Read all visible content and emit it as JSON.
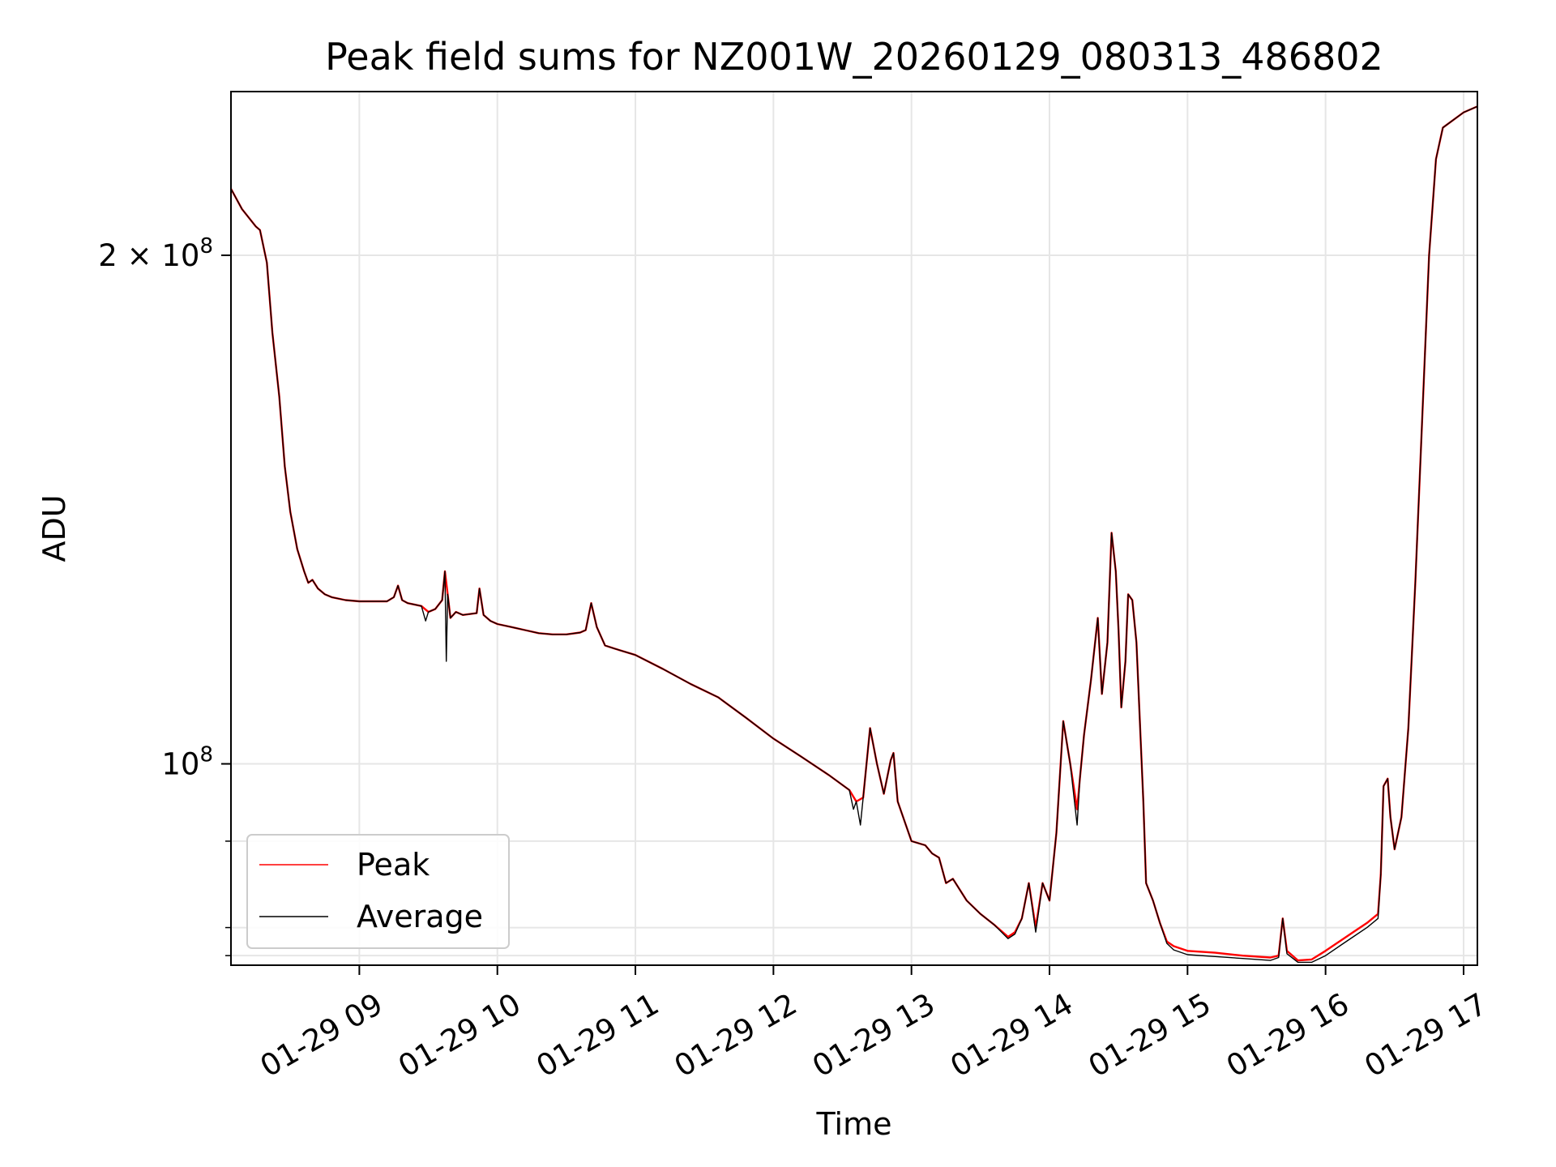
{
  "chart_data": {
    "type": "line",
    "title": "Peak field sums for NZ001W_20260129_080313_486802",
    "xlabel": "Time",
    "ylabel": "ADU",
    "yscale": "log",
    "ylim": [
      76000000,
      250000000
    ],
    "xlim_hours": [
      8.07,
      17.1
    ],
    "grid": true,
    "legend_position": "lower-left",
    "x_ticks": [
      {
        "hour": 9,
        "label": "01-29 09"
      },
      {
        "hour": 10,
        "label": "01-29 10"
      },
      {
        "hour": 11,
        "label": "01-29 11"
      },
      {
        "hour": 12,
        "label": "01-29 12"
      },
      {
        "hour": 13,
        "label": "01-29 13"
      },
      {
        "hour": 14,
        "label": "01-29 14"
      },
      {
        "hour": 15,
        "label": "01-29 15"
      },
      {
        "hour": 16,
        "label": "01-29 16"
      },
      {
        "hour": 17,
        "label": "01-29 17"
      }
    ],
    "y_ticks_major": [
      {
        "value": 100000000,
        "base": "10",
        "exp": "8"
      },
      {
        "value": 200000000,
        "base": "2 × 10",
        "exp": "8"
      }
    ],
    "y_ticks_minor": [
      77000000,
      80000000,
      90000000,
      300000000
    ],
    "series": [
      {
        "name": "Peak",
        "color": "#ff0000",
        "points": [
          [
            8.07,
            219
          ],
          [
            8.15,
            213
          ],
          [
            8.25,
            208
          ],
          [
            8.28,
            207
          ],
          [
            8.33,
            198
          ],
          [
            8.37,
            180
          ],
          [
            8.42,
            165
          ],
          [
            8.46,
            150
          ],
          [
            8.5,
            141
          ],
          [
            8.55,
            134
          ],
          [
            8.6,
            130
          ],
          [
            8.63,
            128
          ],
          [
            8.66,
            128.5
          ],
          [
            8.7,
            127
          ],
          [
            8.75,
            126
          ],
          [
            8.8,
            125.5
          ],
          [
            8.9,
            125
          ],
          [
            9,
            124.8
          ],
          [
            9.1,
            124.8
          ],
          [
            9.2,
            124.8
          ],
          [
            9.25,
            125.5
          ],
          [
            9.28,
            127.5
          ],
          [
            9.31,
            125
          ],
          [
            9.35,
            124.5
          ],
          [
            9.45,
            124
          ],
          [
            9.5,
            123
          ],
          [
            9.55,
            123.5
          ],
          [
            9.6,
            125
          ],
          [
            9.62,
            130
          ],
          [
            9.64,
            126
          ],
          [
            9.66,
            122
          ],
          [
            9.7,
            123
          ],
          [
            9.75,
            122.5
          ],
          [
            9.85,
            122.8
          ],
          [
            9.87,
            127
          ],
          [
            9.9,
            122.5
          ],
          [
            9.95,
            121.5
          ],
          [
            10,
            121
          ],
          [
            10.1,
            120.5
          ],
          [
            10.2,
            120
          ],
          [
            10.3,
            119.5
          ],
          [
            10.4,
            119.3
          ],
          [
            10.5,
            119.3
          ],
          [
            10.6,
            119.6
          ],
          [
            10.64,
            120
          ],
          [
            10.68,
            124.5
          ],
          [
            10.72,
            120.5
          ],
          [
            10.78,
            117.5
          ],
          [
            10.85,
            117
          ],
          [
            11,
            116
          ],
          [
            11.2,
            113.8
          ],
          [
            11.4,
            111.5
          ],
          [
            11.6,
            109.5
          ],
          [
            11.8,
            106.5
          ],
          [
            12,
            103.5
          ],
          [
            12.2,
            101
          ],
          [
            12.4,
            98.5
          ],
          [
            12.55,
            96.5
          ],
          [
            12.6,
            95
          ],
          [
            12.65,
            95.5
          ],
          [
            12.7,
            105
          ],
          [
            12.75,
            100
          ],
          [
            12.8,
            96
          ],
          [
            12.85,
            100.5
          ],
          [
            12.87,
            101.5
          ],
          [
            12.9,
            95
          ],
          [
            13,
            90
          ],
          [
            13.1,
            89.5
          ],
          [
            13.15,
            88.5
          ],
          [
            13.2,
            88
          ],
          [
            13.25,
            85
          ],
          [
            13.3,
            85.5
          ],
          [
            13.4,
            83
          ],
          [
            13.5,
            81.5
          ],
          [
            13.6,
            80.3
          ],
          [
            13.7,
            79
          ],
          [
            13.75,
            79.5
          ],
          [
            13.8,
            81
          ],
          [
            13.85,
            85
          ],
          [
            13.9,
            80
          ],
          [
            13.95,
            85
          ],
          [
            14,
            83
          ],
          [
            14.05,
            91
          ],
          [
            14.1,
            106
          ],
          [
            14.15,
            100
          ],
          [
            14.2,
            94
          ],
          [
            14.22,
            98
          ],
          [
            14.25,
            104
          ],
          [
            14.3,
            112
          ],
          [
            14.35,
            122
          ],
          [
            14.38,
            110
          ],
          [
            14.42,
            118
          ],
          [
            14.45,
            137
          ],
          [
            14.48,
            130
          ],
          [
            14.5,
            120
          ],
          [
            14.52,
            108
          ],
          [
            14.55,
            115
          ],
          [
            14.57,
            126
          ],
          [
            14.6,
            125
          ],
          [
            14.63,
            118
          ],
          [
            14.68,
            95
          ],
          [
            14.7,
            85
          ],
          [
            14.75,
            83
          ],
          [
            14.8,
            80.5
          ],
          [
            14.85,
            78.5
          ],
          [
            14.9,
            78
          ],
          [
            15,
            77.5
          ],
          [
            15.2,
            77.3
          ],
          [
            15.4,
            77
          ],
          [
            15.6,
            76.8
          ],
          [
            15.66,
            77
          ],
          [
            15.69,
            81
          ],
          [
            15.72,
            77.5
          ],
          [
            15.8,
            76.5
          ],
          [
            15.9,
            76.6
          ],
          [
            16,
            77.5
          ],
          [
            16.1,
            78.5
          ],
          [
            16.2,
            79.5
          ],
          [
            16.3,
            80.5
          ],
          [
            16.38,
            81.5
          ],
          [
            16.4,
            86
          ],
          [
            16.42,
            97
          ],
          [
            16.45,
            98
          ],
          [
            16.47,
            93
          ],
          [
            16.5,
            89
          ],
          [
            16.55,
            93
          ],
          [
            16.6,
            105
          ],
          [
            16.65,
            128
          ],
          [
            16.7,
            160
          ],
          [
            16.75,
            200
          ],
          [
            16.8,
            228
          ],
          [
            16.85,
            238
          ],
          [
            17,
            243
          ],
          [
            17.1,
            245
          ]
        ]
      },
      {
        "name": "Average",
        "color": "#000000",
        "points": [
          [
            8.07,
            219
          ],
          [
            8.15,
            213
          ],
          [
            8.25,
            208
          ],
          [
            8.28,
            207
          ],
          [
            8.33,
            198
          ],
          [
            8.37,
            180
          ],
          [
            8.42,
            165
          ],
          [
            8.46,
            150
          ],
          [
            8.5,
            141
          ],
          [
            8.55,
            134
          ],
          [
            8.6,
            130
          ],
          [
            8.63,
            128
          ],
          [
            8.66,
            128.5
          ],
          [
            8.7,
            127
          ],
          [
            8.75,
            126
          ],
          [
            8.8,
            125.5
          ],
          [
            8.9,
            125
          ],
          [
            9,
            124.8
          ],
          [
            9.1,
            124.8
          ],
          [
            9.2,
            124.8
          ],
          [
            9.25,
            125.5
          ],
          [
            9.28,
            127.5
          ],
          [
            9.31,
            125
          ],
          [
            9.35,
            124.5
          ],
          [
            9.45,
            124
          ],
          [
            9.48,
            121.5
          ],
          [
            9.5,
            123
          ],
          [
            9.55,
            123.5
          ],
          [
            9.6,
            125
          ],
          [
            9.62,
            130
          ],
          [
            9.63,
            115
          ],
          [
            9.64,
            126
          ],
          [
            9.66,
            122
          ],
          [
            9.7,
            123
          ],
          [
            9.75,
            122.5
          ],
          [
            9.85,
            122.8
          ],
          [
            9.87,
            127
          ],
          [
            9.9,
            122.5
          ],
          [
            9.95,
            121.5
          ],
          [
            10,
            121
          ],
          [
            10.1,
            120.5
          ],
          [
            10.2,
            120
          ],
          [
            10.3,
            119.5
          ],
          [
            10.4,
            119.3
          ],
          [
            10.5,
            119.3
          ],
          [
            10.6,
            119.6
          ],
          [
            10.64,
            120
          ],
          [
            10.68,
            124.5
          ],
          [
            10.72,
            120.5
          ],
          [
            10.78,
            117.5
          ],
          [
            10.85,
            117
          ],
          [
            11,
            116
          ],
          [
            11.2,
            113.8
          ],
          [
            11.4,
            111.5
          ],
          [
            11.6,
            109.5
          ],
          [
            11.8,
            106.5
          ],
          [
            12,
            103.5
          ],
          [
            12.2,
            101
          ],
          [
            12.4,
            98.5
          ],
          [
            12.55,
            96.5
          ],
          [
            12.58,
            94
          ],
          [
            12.6,
            95
          ],
          [
            12.63,
            92
          ],
          [
            12.65,
            95.5
          ],
          [
            12.7,
            105
          ],
          [
            12.75,
            100
          ],
          [
            12.8,
            96
          ],
          [
            12.85,
            100.5
          ],
          [
            12.87,
            101.5
          ],
          [
            12.9,
            95
          ],
          [
            13,
            90
          ],
          [
            13.1,
            89.5
          ],
          [
            13.15,
            88.5
          ],
          [
            13.2,
            88
          ],
          [
            13.25,
            85
          ],
          [
            13.3,
            85.5
          ],
          [
            13.4,
            83
          ],
          [
            13.5,
            81.5
          ],
          [
            13.6,
            80.3
          ],
          [
            13.7,
            78.8
          ],
          [
            13.75,
            79.3
          ],
          [
            13.8,
            81
          ],
          [
            13.85,
            85
          ],
          [
            13.9,
            79.5
          ],
          [
            13.95,
            85
          ],
          [
            14,
            83
          ],
          [
            14.05,
            91
          ],
          [
            14.1,
            106
          ],
          [
            14.15,
            100
          ],
          [
            14.2,
            92
          ],
          [
            14.22,
            98
          ],
          [
            14.25,
            104
          ],
          [
            14.3,
            112
          ],
          [
            14.35,
            122
          ],
          [
            14.38,
            110
          ],
          [
            14.42,
            118
          ],
          [
            14.45,
            137
          ],
          [
            14.48,
            130
          ],
          [
            14.5,
            120
          ],
          [
            14.52,
            108
          ],
          [
            14.55,
            115
          ],
          [
            14.57,
            126
          ],
          [
            14.6,
            125
          ],
          [
            14.63,
            118
          ],
          [
            14.68,
            95
          ],
          [
            14.7,
            85
          ],
          [
            14.75,
            83
          ],
          [
            14.8,
            80.5
          ],
          [
            14.85,
            78.3
          ],
          [
            14.9,
            77.6
          ],
          [
            15,
            77.1
          ],
          [
            15.2,
            76.9
          ],
          [
            15.4,
            76.7
          ],
          [
            15.6,
            76.5
          ],
          [
            15.66,
            76.8
          ],
          [
            15.69,
            81
          ],
          [
            15.72,
            77.2
          ],
          [
            15.8,
            76.3
          ],
          [
            15.9,
            76.3
          ],
          [
            16,
            77
          ],
          [
            16.1,
            78
          ],
          [
            16.2,
            79
          ],
          [
            16.3,
            80
          ],
          [
            16.38,
            81
          ],
          [
            16.4,
            86
          ],
          [
            16.42,
            97
          ],
          [
            16.45,
            98
          ],
          [
            16.47,
            93
          ],
          [
            16.5,
            89
          ],
          [
            16.55,
            93
          ],
          [
            16.6,
            105
          ],
          [
            16.65,
            128
          ],
          [
            16.7,
            160
          ],
          [
            16.75,
            200
          ],
          [
            16.8,
            228
          ],
          [
            16.85,
            238
          ],
          [
            17,
            243
          ],
          [
            17.1,
            245
          ]
        ]
      }
    ]
  }
}
